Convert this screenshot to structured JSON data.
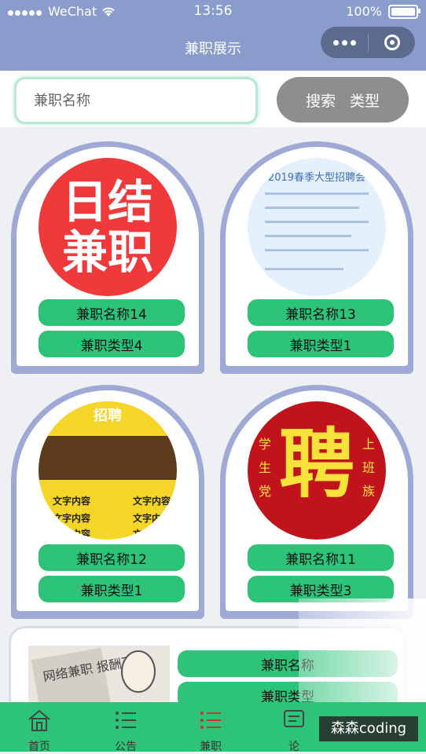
{
  "status_bar": {
    "carrier": "WeChat",
    "time": "13:56",
    "battery": "100%"
  },
  "nav": {
    "title": "兼职展示"
  },
  "search": {
    "placeholder": "兼职名称",
    "button_left": "搜索",
    "button_right": "类型"
  },
  "cards": [
    {
      "name": "兼职名称14",
      "type": "兼职类型4",
      "img_line1": "日结",
      "img_line2": "兼职"
    },
    {
      "name": "兼职名称13",
      "type": "兼职类型1",
      "img_title": "2019春季大型招聘会"
    },
    {
      "name": "兼职名称12",
      "type": "兼职类型1",
      "img_title": "招聘",
      "img_text": "文字内容"
    },
    {
      "name": "兼职名称11",
      "type": "兼职类型3",
      "img_char": "聘",
      "img_left": "学生党",
      "img_right": "上班族"
    }
  ],
  "card5": {
    "name": "兼职名称",
    "type": "兼职类型",
    "img_text": "网络兼职 报酬不菲"
  },
  "tabs": [
    {
      "label": "首页",
      "icon": "home-icon"
    },
    {
      "label": "公告",
      "icon": "notice-icon"
    },
    {
      "label": "兼职",
      "icon": "list-icon",
      "active": true
    },
    {
      "label": "论",
      "icon": "forum-icon"
    }
  ],
  "watermark": "森森coding",
  "colors": {
    "nav": "#8a9ccb",
    "accent": "#2dc47a",
    "card_frame": "#9ea9d6"
  }
}
